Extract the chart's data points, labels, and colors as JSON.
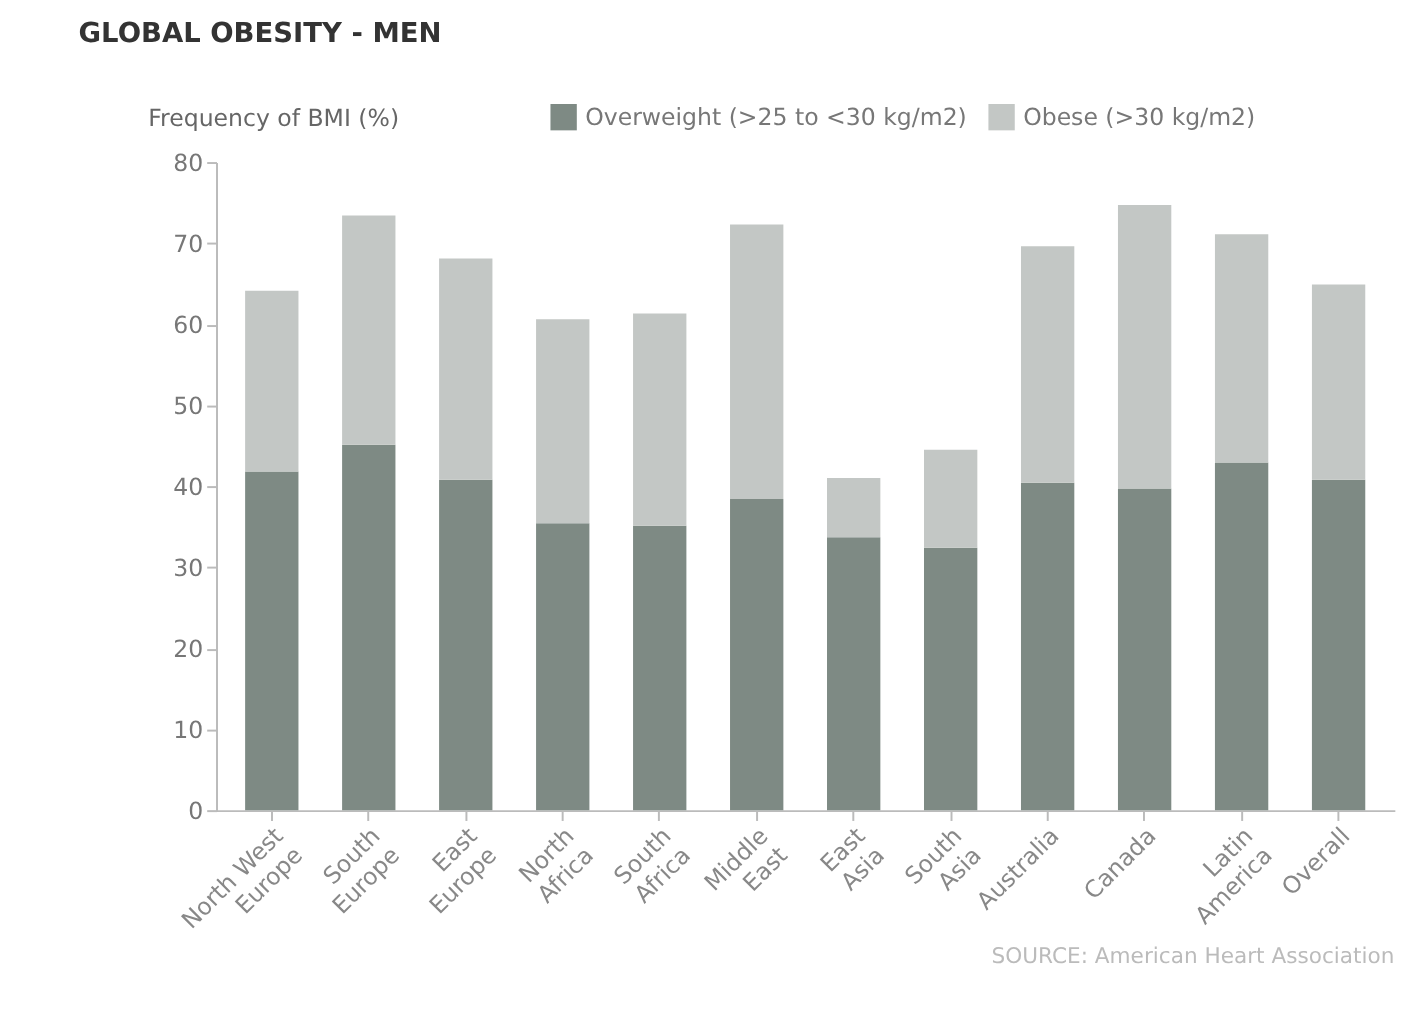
{
  "chart_data": {
    "type": "bar",
    "title": "GLOBAL OBESITY - MEN",
    "ylabel": "Frequency of BMI (%)",
    "categories": [
      "North West Europe",
      "South Europe",
      "East Europe",
      "North Africa",
      "South Africa",
      "Middle East",
      "East Asia",
      "South Asia",
      "Australia",
      "Canada",
      "Latin America",
      "Overall"
    ],
    "stacked": true,
    "series": [
      {
        "name": "Overweight (>25 to <30 kg/m2)",
        "color": "#7e8a84",
        "values": [
          41.8,
          45.1,
          40.8,
          35.4,
          35.1,
          38.4,
          33.7,
          32.4,
          40.4,
          39.7,
          42.9,
          40.8
        ]
      },
      {
        "name": "Obese (>30 kg/m2)",
        "color": "#c3c7c5",
        "values": [
          22.3,
          28.3,
          27.3,
          25.2,
          26.2,
          33.9,
          7.3,
          12.1,
          29.2,
          35.0,
          28.2,
          24.1
        ]
      }
    ],
    "ylim": [
      0,
      80
    ],
    "yticks": [
      0,
      10,
      20,
      30,
      40,
      50,
      60,
      70,
      80
    ],
    "grid": false,
    "legend": "top",
    "annotations": [
      "SOURCE: American Heart Association"
    ]
  }
}
